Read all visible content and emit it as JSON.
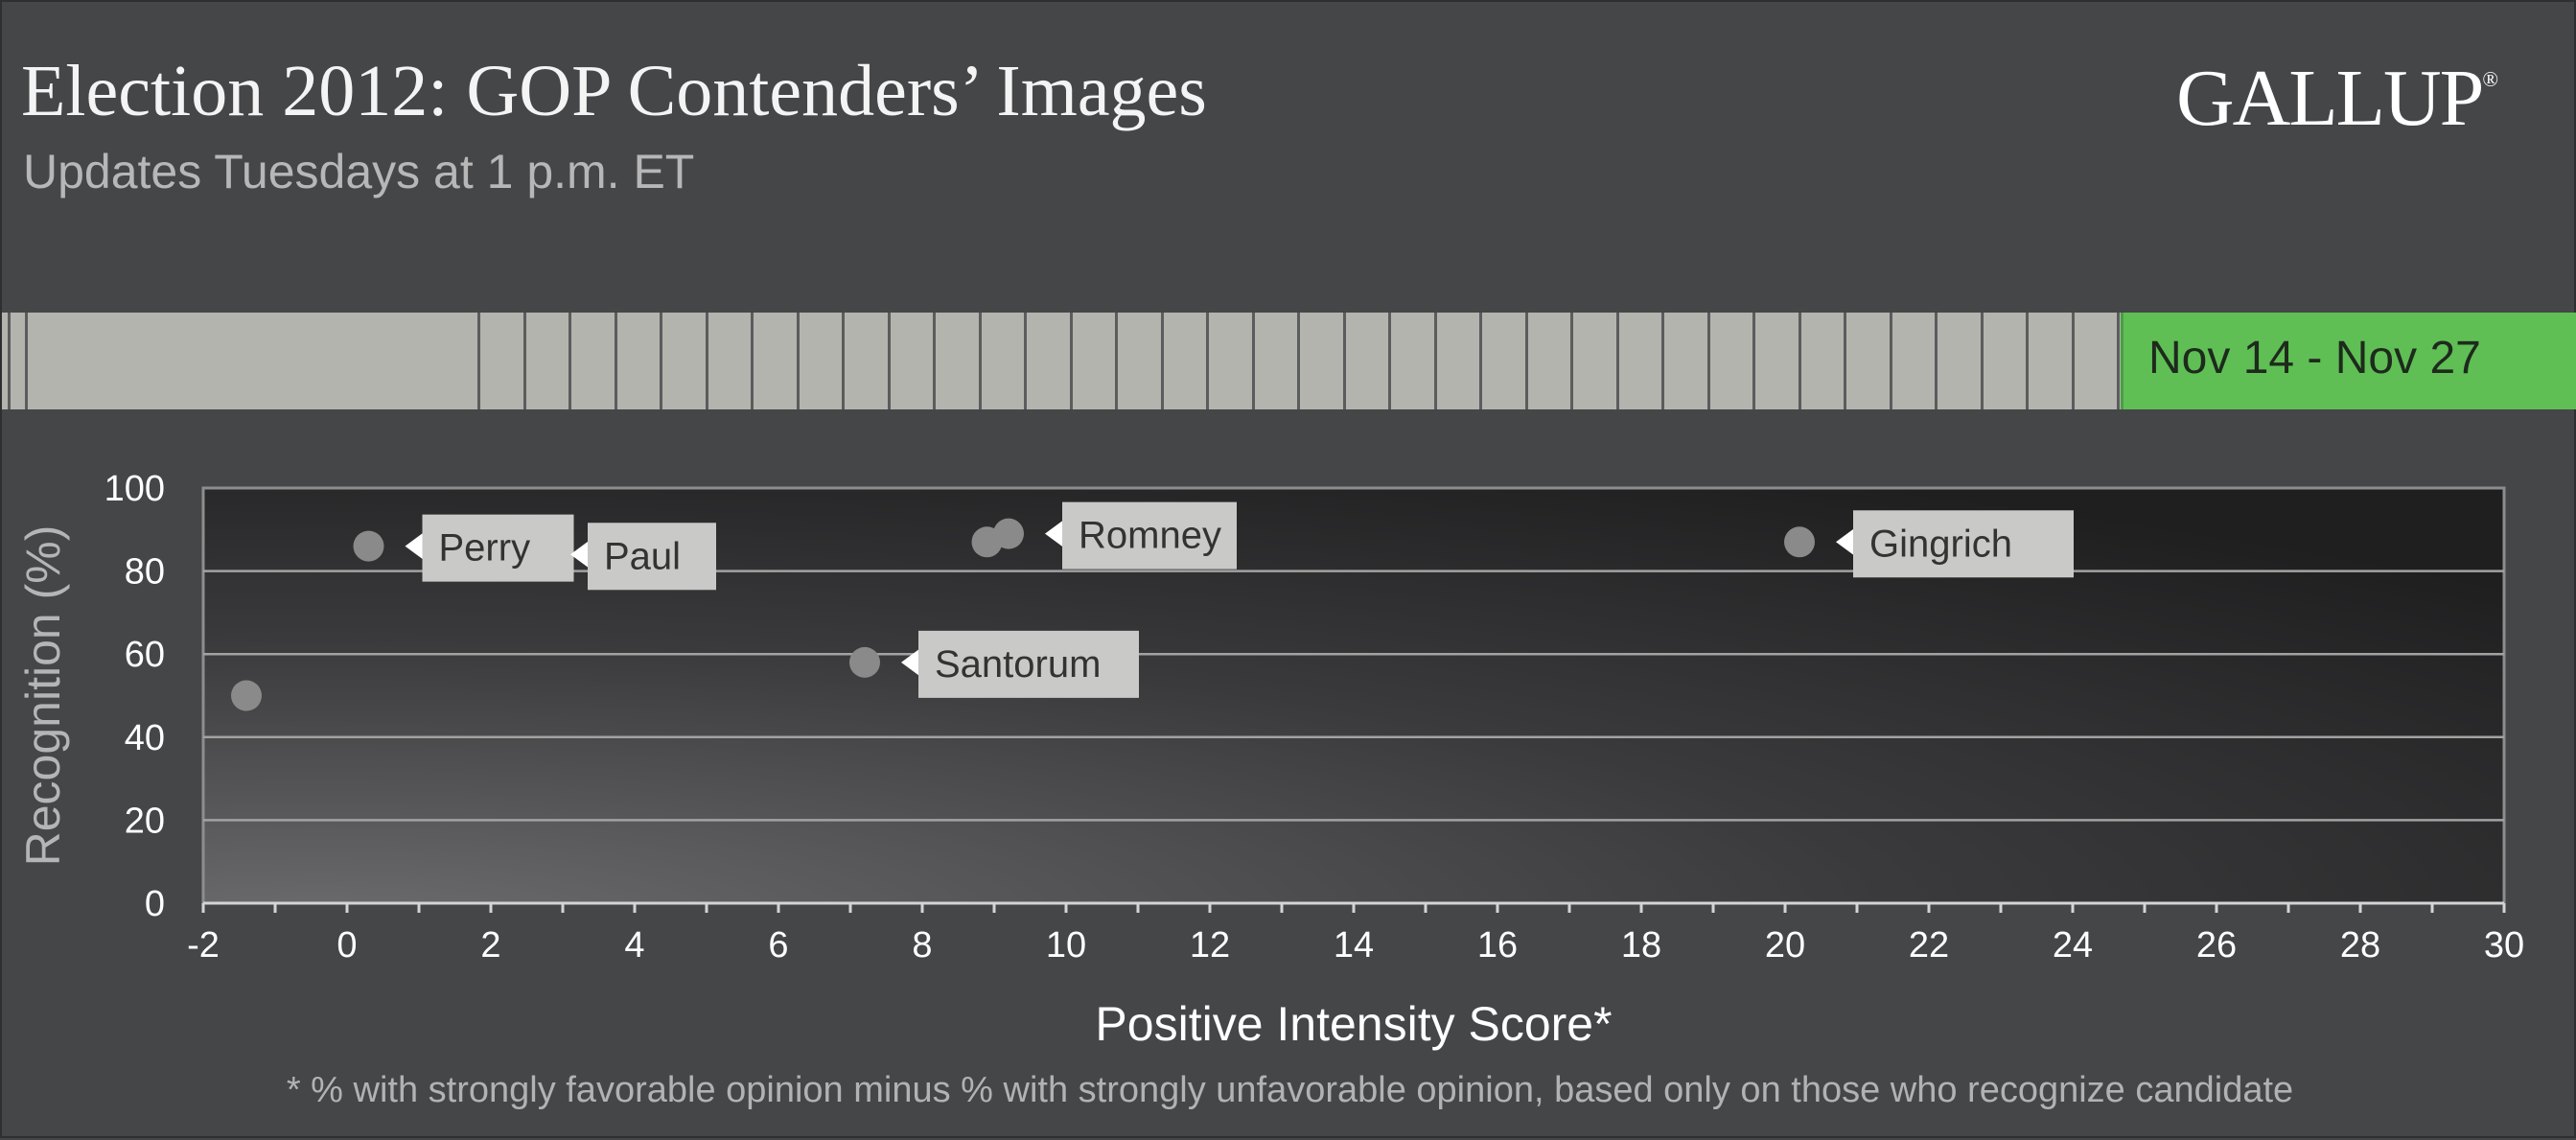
{
  "header": {
    "title": "Election 2012: GOP Contenders’ Images",
    "subtitle": "Updates Tuesdays at 1 p.m. ET",
    "logo_text": "GALLUP",
    "logo_mark": "®"
  },
  "timeline": {
    "current_period_label": "Nov 14 - Nov 27",
    "bar_color": "#b3b4ae",
    "active_color": "#5fbf55"
  },
  "chart_data": {
    "type": "scatter",
    "xlabel": "Positive Intensity Score*",
    "ylabel": "Recognition (%)",
    "xlim": [
      -2,
      30
    ],
    "ylim": [
      0,
      100
    ],
    "x_ticks": [
      "-2",
      "0",
      "2",
      "4",
      "6",
      "8",
      "10",
      "12",
      "14",
      "16",
      "18",
      "20",
      "22",
      "24",
      "26",
      "28",
      "30"
    ],
    "y_ticks": [
      "0",
      "20",
      "40",
      "60",
      "80",
      "100"
    ],
    "grid": true,
    "marker_color": "#8a8a8a",
    "points": [
      {
        "label": "Perry",
        "x": 0.3,
        "y": 86
      },
      {
        "label": "Paul",
        "x": 2.6,
        "y": 84
      },
      {
        "label": "Romney",
        "x": 9.2,
        "y": 89
      },
      {
        "label": "",
        "x": 8.9,
        "y": 87
      },
      {
        "label": "Gingrich",
        "x": 20.2,
        "y": 87
      },
      {
        "label": "Santorum",
        "x": 7.2,
        "y": 58
      },
      {
        "label": "",
        "x": -1.4,
        "y": 50
      }
    ],
    "footnote": "* % with strongly favorable opinion minus % with strongly unfavorable opinion, based only on those who recognize candidate"
  }
}
